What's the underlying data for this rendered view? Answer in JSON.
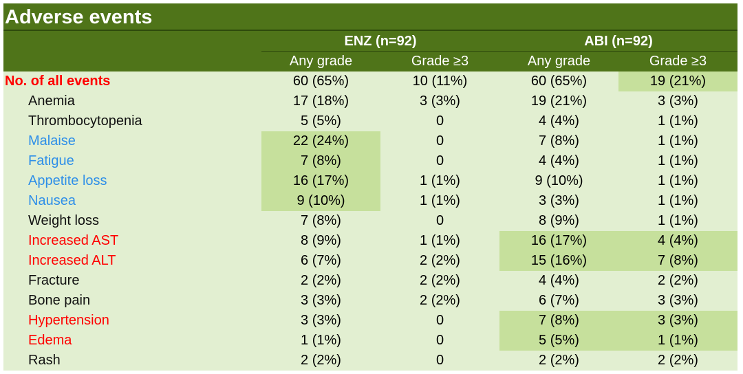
{
  "title": "Adverse events",
  "groups": [
    "ENZ (n=92)",
    "ABI (n=92)"
  ],
  "subheaders": [
    "Any grade",
    "Grade ≥3",
    "Any grade",
    "Grade ≥3"
  ],
  "colors": {
    "header": "#4f7419",
    "background": "#e2efd1",
    "highlight": "#c6e09c",
    "red": "#ff0000",
    "blue": "#2e8fe8"
  },
  "rows": [
    {
      "label": "No. of all events",
      "color": "red",
      "total": true,
      "values": [
        "60 (65%)",
        "10 (11%)",
        "60 (65%)",
        "19 (21%)"
      ],
      "highlight": [
        false,
        false,
        false,
        true
      ]
    },
    {
      "label": "Anemia",
      "color": "black",
      "values": [
        "17 (18%)",
        "3 (3%)",
        "19 (21%)",
        "3 (3%)"
      ],
      "highlight": [
        false,
        false,
        false,
        false
      ]
    },
    {
      "label": "Thrombocytopenia",
      "color": "black",
      "values": [
        "5 (5%)",
        "0",
        "4 (4%)",
        "1 (1%)"
      ],
      "highlight": [
        false,
        false,
        false,
        false
      ]
    },
    {
      "label": "Malaise",
      "color": "blue",
      "values": [
        "22 (24%)",
        "0",
        "7 (8%)",
        "1 (1%)"
      ],
      "highlight": [
        true,
        false,
        false,
        false
      ]
    },
    {
      "label": "Fatigue",
      "color": "blue",
      "values": [
        "7 (8%)",
        "0",
        "4 (4%)",
        "1 (1%)"
      ],
      "highlight": [
        true,
        false,
        false,
        false
      ]
    },
    {
      "label": "Appetite loss",
      "color": "blue",
      "values": [
        "16 (17%)",
        "1 (1%)",
        "9 (10%)",
        "1 (1%)"
      ],
      "highlight": [
        true,
        false,
        false,
        false
      ]
    },
    {
      "label": "Nausea",
      "color": "blue",
      "values": [
        "9 (10%)",
        "1 (1%)",
        "3 (3%)",
        "1 (1%)"
      ],
      "highlight": [
        true,
        false,
        false,
        false
      ]
    },
    {
      "label": "Weight loss",
      "color": "black",
      "values": [
        "7 (8%)",
        "0",
        "8 (9%)",
        "1 (1%)"
      ],
      "highlight": [
        false,
        false,
        false,
        false
      ]
    },
    {
      "label": "Increased AST",
      "color": "red",
      "values": [
        "8 (9%)",
        "1 (1%)",
        "16 (17%)",
        "4 (4%)"
      ],
      "highlight": [
        false,
        false,
        true,
        true
      ]
    },
    {
      "label": "Increased ALT",
      "color": "red",
      "values": [
        "6 (7%)",
        "2 (2%)",
        "15 (16%)",
        "7 (8%)"
      ],
      "highlight": [
        false,
        false,
        true,
        true
      ]
    },
    {
      "label": "Fracture",
      "color": "black",
      "values": [
        "2 (2%)",
        "2 (2%)",
        "4 (4%)",
        "2 (2%)"
      ],
      "highlight": [
        false,
        false,
        false,
        false
      ]
    },
    {
      "label": "Bone pain",
      "color": "black",
      "values": [
        "3 (3%)",
        "2 (2%)",
        "6 (7%)",
        "3 (3%)"
      ],
      "highlight": [
        false,
        false,
        false,
        false
      ]
    },
    {
      "label": "Hypertension",
      "color": "red",
      "values": [
        "3 (3%)",
        "0",
        "7 (8%)",
        "3 (3%)"
      ],
      "highlight": [
        false,
        false,
        true,
        true
      ]
    },
    {
      "label": "Edema",
      "color": "red",
      "values": [
        "1 (1%)",
        "0",
        "5 (5%)",
        "1 (1%)"
      ],
      "highlight": [
        false,
        false,
        true,
        true
      ]
    },
    {
      "label": "Rash",
      "color": "black",
      "values": [
        "2 (2%)",
        "0",
        "2 (2%)",
        "2 (2%)"
      ],
      "highlight": [
        false,
        false,
        false,
        false
      ]
    }
  ]
}
